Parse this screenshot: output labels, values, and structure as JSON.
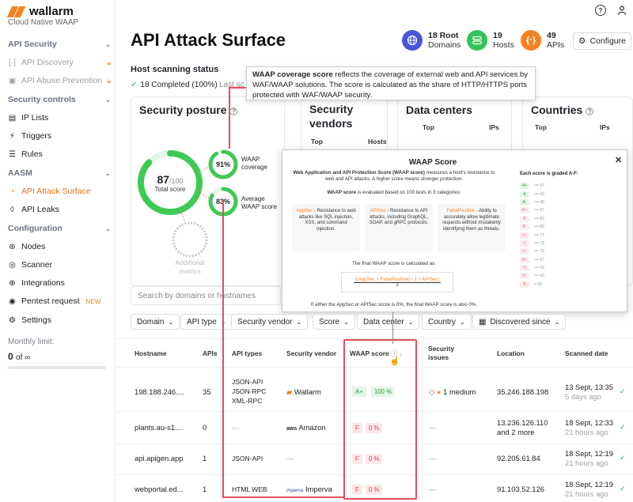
{
  "brand": {
    "name": "wallarm",
    "subtitle": "Cloud Native WAAP"
  },
  "sidebar": {
    "sections": [
      {
        "label": "API Security"
      },
      {
        "label": "Security controls"
      },
      {
        "label": "AASM"
      },
      {
        "label": "Configuration"
      }
    ],
    "items": [
      {
        "label": "API Discovery",
        "icon": "api-discovery-icon",
        "disabled": true,
        "locked": true
      },
      {
        "label": "API Abuse Prevention",
        "icon": "api-abuse-icon",
        "disabled": true,
        "locked": true
      },
      {
        "label": "IP Lists",
        "icon": "ip-lists-icon"
      },
      {
        "label": "Triggers",
        "icon": "triggers-icon"
      },
      {
        "label": "Rules",
        "icon": "rules-icon"
      },
      {
        "label": "API Attack Surface",
        "icon": "attack-surface-icon",
        "active": true
      },
      {
        "label": "API Leaks",
        "icon": "leaks-icon"
      },
      {
        "label": "Nodes",
        "icon": "nodes-icon"
      },
      {
        "label": "Scanner",
        "icon": "scanner-icon"
      },
      {
        "label": "Integrations",
        "icon": "integrations-icon"
      },
      {
        "label": "Pentest request",
        "icon": "pentest-icon",
        "badge": "NEW"
      },
      {
        "label": "Settings",
        "icon": "settings-icon"
      }
    ],
    "monthly_limit_label": "Monthly limit:",
    "monthly_limit_value": "0",
    "monthly_limit_of": "of ∞"
  },
  "header": {
    "title": "API Attack Surface",
    "stats": [
      {
        "num": "18 Root",
        "label": "Domains",
        "icon": "globe-icon",
        "color": "#4a55d8"
      },
      {
        "num": "19",
        "label": "Hosts",
        "icon": "hosts-icon",
        "color": "#34c25a"
      },
      {
        "num": "49",
        "label": "APIs",
        "icon": "api-icon",
        "color": "#f5821f"
      }
    ],
    "configure_label": "Configure"
  },
  "scanning": {
    "title": "Host scanning status",
    "completed": "18 Completed (100%)",
    "last_scan": "Last sc"
  },
  "tooltip": {
    "bold": "WAAP coverage score",
    "text": " reflects the coverage of external web and API services by WAF/WAAP solutions. The score is calculated as the share of HTTP/HTTPS ports protected with WAF/WAAP security."
  },
  "posture": {
    "title": "Security posture",
    "total_score": "87",
    "total_max": "/100",
    "total_label": "Total score",
    "total_value": 0.87,
    "coverage_value": "91%",
    "coverage_label": "WAAP coverage",
    "coverage_frac": 0.91,
    "waap_value": "83%",
    "waap_label": "Average WAAP score",
    "waap_frac": 0.83,
    "additional_label": "Additional metrics"
  },
  "cards": {
    "vendors_title": "Security vendors",
    "vendors_top": "Top",
    "vendors_hosts": "Hosts",
    "dc_title": "Data centers",
    "dc_top": "Top",
    "dc_ips": "IPs",
    "countries_title": "Countries",
    "countries_top": "Top",
    "countries_ips": "IPs"
  },
  "modal": {
    "title": "WAAP Score",
    "intro_bold": "Web Application and API Protection Score (WAAP score)",
    "intro": " measures a host's resistance to web and API attacks. A higher score means stronger protection.",
    "tests_bold": "WAAP score",
    "tests": " is evaluated based on 100 tests in 3 categories:",
    "cats": [
      {
        "name": "AppSec",
        "text": " - Resistance to web attacks like SQL injection, XSS, and command injection."
      },
      {
        "name": "APISec",
        "text": " - Resistance to API attacks, including GraphQL, SOAP, and gRPC protocols."
      },
      {
        "name": "FalsePositive",
        "text": " - Ability to accurately allow legitimate requests without mistakenly identifying them as threats."
      }
    ],
    "final_label": "The final WAAP score is calculated as:",
    "formula_top": "((AppSec + FalsePositive) / 2 + APISec)",
    "formula_bottom": "2",
    "footer": "If either the AppSec or APISec score is 0%, the final WAAP score is also 0%.",
    "grades_title": "Each score is graded A-F:",
    "grades": [
      {
        "g": "A+",
        "r": ">= 97"
      },
      {
        "g": "A",
        "r": ">= 93"
      },
      {
        "g": "A-",
        "r": ">= 90"
      },
      {
        "g": "B+",
        "r": ">= 87"
      },
      {
        "g": "B",
        "r": ">= 83"
      },
      {
        "g": "B-",
        "r": ">= 80"
      },
      {
        "g": "C+",
        "r": ">= 77"
      },
      {
        "g": "C",
        "r": ">= 73"
      },
      {
        "g": "C-",
        "r": ">= 70"
      },
      {
        "g": "D+",
        "r": ">= 67"
      },
      {
        "g": "D",
        "r": ">= 63"
      },
      {
        "g": "D-",
        "r": ">= 60"
      },
      {
        "g": "F",
        "r": "< 60"
      }
    ]
  },
  "search": {
    "placeholder": "Search by domains or hostnames"
  },
  "filters": [
    {
      "label": "Domain"
    },
    {
      "label": "API type"
    },
    {
      "label": "Security vendor"
    },
    {
      "label": "Score"
    },
    {
      "label": "Data center"
    },
    {
      "label": "Country"
    },
    {
      "label": "Discovered since"
    }
  ],
  "table": {
    "columns": [
      "Hostname",
      "APIs",
      "API types",
      "Security vendor",
      "WAAP score",
      "Security issues",
      "Location",
      "Scanned date"
    ],
    "rows": [
      {
        "host": "198.188.246....",
        "apis": "35",
        "types": [
          "JSON-API",
          "JSON-RPC",
          "XML-RPC"
        ],
        "vendor": "Wallarm",
        "grade": "A+",
        "score": "100 %",
        "issues": "1 medium",
        "location": "35.246.188.198",
        "date": "13 Sept, 13:35",
        "ago": "5 days ago"
      },
      {
        "host": "plants.au-s1....",
        "apis": "0",
        "types": [
          "—"
        ],
        "vendor": "Amazon",
        "grade": "F",
        "score": "0 %",
        "issues": "—",
        "location": "13.236.126.110 and 2 more",
        "date": "18 Sept, 12:33",
        "ago": "21 hours ago"
      },
      {
        "host": "api.apigen.app",
        "apis": "1",
        "types": [
          "JSON-API"
        ],
        "vendor": "—",
        "grade": "F",
        "score": "0 %",
        "issues": "—",
        "location": "92.205.61.84",
        "date": "18 Sept, 12:19",
        "ago": "21 hours ago"
      },
      {
        "host": "webportal.ed...",
        "apis": "1",
        "types": [
          "HTML WEB"
        ],
        "vendor": "Imperva",
        "grade": "F",
        "score": "0 %",
        "issues": "—",
        "location": "91.103.52.126",
        "date": "18 Sept, 12:19",
        "ago": "21 hours ago"
      }
    ]
  }
}
